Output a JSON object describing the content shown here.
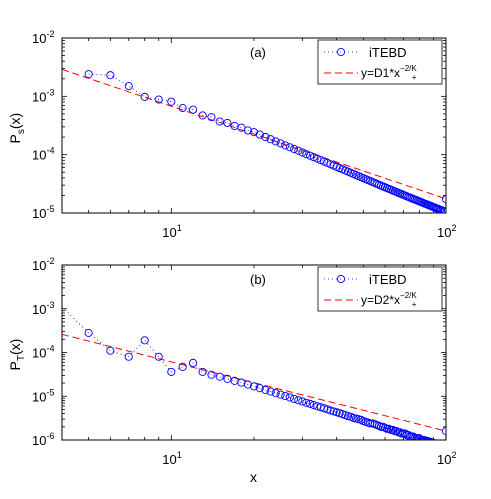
{
  "chart_data": [
    {
      "type": "scatter",
      "panel_label": "(a)",
      "xscale": "log",
      "yscale": "log",
      "xlim": [
        4,
        100
      ],
      "ylim": [
        1e-05,
        0.01
      ],
      "ylabel": {
        "main": "P",
        "sub": "s",
        "tail": "(x)"
      },
      "xlabel": "",
      "grid": false,
      "legend_placement": "top-right",
      "series": [
        {
          "name": "iTEBD",
          "style": "circles with dotted line",
          "color": "#0000ff",
          "x": [
            5,
            6,
            7,
            8,
            9,
            10,
            11,
            12,
            13,
            14,
            15,
            16,
            17,
            18,
            19,
            20,
            21,
            22,
            23,
            24,
            25,
            26,
            27,
            28,
            29,
            30,
            31,
            32,
            33,
            34,
            35,
            36,
            37,
            38,
            39,
            40,
            41,
            42,
            43,
            44,
            45,
            46,
            47,
            48,
            49,
            50,
            51,
            52,
            53,
            54,
            55,
            56,
            57,
            58,
            59,
            60,
            61,
            62,
            63,
            64,
            65,
            66,
            67,
            68,
            69,
            70,
            71,
            72,
            73,
            74,
            75,
            76,
            77,
            78,
            79,
            80,
            81,
            82,
            83,
            84,
            85,
            86,
            87,
            88,
            89,
            90,
            91,
            92,
            93,
            94,
            95,
            96,
            97,
            98,
            99,
            100
          ],
          "y": [
            0.0024,
            0.0023,
            0.0015,
            0.00098,
            0.00088,
            0.00081,
            0.00063,
            0.00059,
            0.00047,
            0.00044,
            0.00037,
            0.00035,
            0.00031,
            0.00029,
            0.00026,
            0.000243,
            0.000221,
            0.000201,
            0.000184,
            0.000169,
            0.000156,
            0.000144,
            0.000134,
            0.000125,
            0.000117,
            0.000109,
            0.000102,
            9.62e-05,
            9.05e-05,
            8.53e-05,
            8.06e-05,
            7.62e-05,
            7.22e-05,
            6.85e-05,
            6.5e-05,
            6.18e-05,
            5.89e-05,
            5.61e-05,
            5.35e-05,
            5.11e-05,
            4.89e-05,
            4.68e-05,
            4.48e-05,
            4.3e-05,
            4.12e-05,
            3.96e-05,
            3.81e-05,
            3.66e-05,
            3.53e-05,
            3.4e-05,
            3.28e-05,
            3.16e-05,
            3.05e-05,
            2.95e-05,
            2.85e-05,
            2.76e-05,
            2.67e-05,
            2.59e-05,
            2.51e-05,
            2.43e-05,
            2.36e-05,
            2.29e-05,
            2.22e-05,
            2.16e-05,
            2.1e-05,
            2.04e-05,
            1.99e-05,
            1.93e-05,
            1.88e-05,
            1.83e-05,
            1.79e-05,
            1.74e-05,
            1.7e-05,
            1.66e-05,
            1.62e-05,
            1.58e-05,
            1.54e-05,
            1.51e-05,
            1.47e-05,
            1.44e-05,
            1.41e-05,
            1.38e-05,
            1.35e-05,
            1.32e-05,
            1.29e-05,
            1.26e-05,
            1.24e-05,
            1.21e-05,
            1.19e-05,
            1.17e-05,
            1.14e-05,
            1.12e-05,
            1.1e-05,
            1.08e-05,
            1.06e-05,
            1.73e-05
          ]
        },
        {
          "name_parts": {
            "main": "y=D1*x",
            "sup": "−2/K",
            "sub": "+"
          },
          "style": "dashed line",
          "color": "#ff0000",
          "x": [
            4,
            100
          ],
          "y": [
            0.0029,
            1.75e-05
          ]
        }
      ],
      "yticks": [
        {
          "value": 1e-05,
          "base": "10",
          "exp": "-5"
        },
        {
          "value": 0.0001,
          "base": "10",
          "exp": "-4"
        },
        {
          "value": 0.001,
          "base": "10",
          "exp": "-3"
        },
        {
          "value": 0.01,
          "base": "10",
          "exp": "-2"
        }
      ],
      "xticks": [
        {
          "value": 10,
          "base": "10",
          "exp": "1"
        },
        {
          "value": 100,
          "base": "10",
          "exp": "2"
        }
      ]
    },
    {
      "type": "scatter",
      "panel_label": "(b)",
      "xscale": "log",
      "yscale": "log",
      "xlim": [
        4,
        100
      ],
      "ylim": [
        1e-06,
        0.01
      ],
      "ylabel": {
        "main": "P",
        "sub": "T",
        "tail": "(x)"
      },
      "xlabel": "x",
      "grid": false,
      "legend_placement": "top-right",
      "series": [
        {
          "name": "iTEBD",
          "style": "circles with dotted line",
          "color": "#0000ff",
          "x": [
            4,
            5,
            6,
            7,
            8,
            9,
            10,
            11,
            12,
            13,
            14,
            15,
            16,
            17,
            18,
            19,
            20,
            21,
            22,
            23,
            24,
            25,
            26,
            27,
            28,
            29,
            30,
            31,
            32,
            33,
            34,
            35,
            36,
            37,
            38,
            39,
            40,
            41,
            42,
            43,
            44,
            45,
            46,
            47,
            48,
            49,
            50,
            51,
            52,
            53,
            54,
            55,
            56,
            57,
            58,
            59,
            60,
            61,
            62,
            63,
            64,
            65,
            66,
            67,
            68,
            69,
            70,
            71,
            72,
            73,
            74,
            75,
            76,
            77,
            78,
            79,
            80,
            81,
            82,
            83,
            84,
            85,
            86,
            87,
            88,
            89,
            90,
            91,
            92,
            93,
            94,
            95,
            96,
            97,
            98,
            99,
            100
          ],
          "y": [
            0.0011,
            0.00028,
            0.00011,
            8e-05,
            0.00019,
            8e-05,
            3.6e-05,
            4.7e-05,
            5.8e-05,
            3.6e-05,
            3.1e-05,
            2.8e-05,
            2.5e-05,
            2.25e-05,
            2.05e-05,
            1.85e-05,
            1.68e-05,
            1.53e-05,
            1.4e-05,
            1.28e-05,
            1.18e-05,
            1.09e-05,
            1.01e-05,
            9.4e-06,
            8.7e-06,
            8.1e-06,
            7.6e-06,
            7.1e-06,
            6.7e-06,
            6.3e-06,
            5.9e-06,
            5.6e-06,
            5.3e-06,
            5e-06,
            4.7e-06,
            4.5e-06,
            4.3e-06,
            4.1e-06,
            3.9e-06,
            3.7e-06,
            3.5e-06,
            3.4e-06,
            3.2e-06,
            3.1e-06,
            3e-06,
            2.9e-06,
            2.7e-06,
            2.6e-06,
            2.5e-06,
            2.4e-06,
            2.4e-06,
            2.3e-06,
            2.2e-06,
            2.1e-06,
            2e-06,
            2e-06,
            1.9e-06,
            1.8e-06,
            1.8e-06,
            1.7e-06,
            1.7e-06,
            1.6e-06,
            1.6e-06,
            1.5e-06,
            1.5e-06,
            1.4e-06,
            1.4e-06,
            1.4e-06,
            1.3e-06,
            1.3e-06,
            1.2e-06,
            1.2e-06,
            1.2e-06,
            1.1e-06,
            1.1e-06,
            1.1e-06,
            1.1e-06,
            1e-06,
            1e-06,
            1e-06,
            9.8e-07,
            9.6e-07,
            9.4e-07,
            9.2e-07,
            9e-07,
            8.8e-07,
            8.6e-07,
            8.4e-07,
            8.2e-07,
            8e-07,
            7.8e-07,
            7.6e-07,
            7.4e-07,
            7.2e-07,
            7e-07,
            6.8e-07,
            1.6e-06
          ]
        },
        {
          "name_parts": {
            "main": "y=D2*x",
            "sup": "−2/K",
            "sub": "+"
          },
          "style": "dashed line",
          "color": "#ff0000",
          "x": [
            4,
            100
          ],
          "y": [
            0.00026,
            1.6e-06
          ]
        }
      ],
      "yticks": [
        {
          "value": 1e-06,
          "base": "10",
          "exp": "-6"
        },
        {
          "value": 1e-05,
          "base": "10",
          "exp": "-5"
        },
        {
          "value": 0.0001,
          "base": "10",
          "exp": "-4"
        },
        {
          "value": 0.001,
          "base": "10",
          "exp": "-3"
        },
        {
          "value": 0.01,
          "base": "10",
          "exp": "-2"
        }
      ],
      "xticks": [
        {
          "value": 10,
          "base": "10",
          "exp": "1"
        },
        {
          "value": 100,
          "base": "10",
          "exp": "2"
        }
      ]
    }
  ]
}
